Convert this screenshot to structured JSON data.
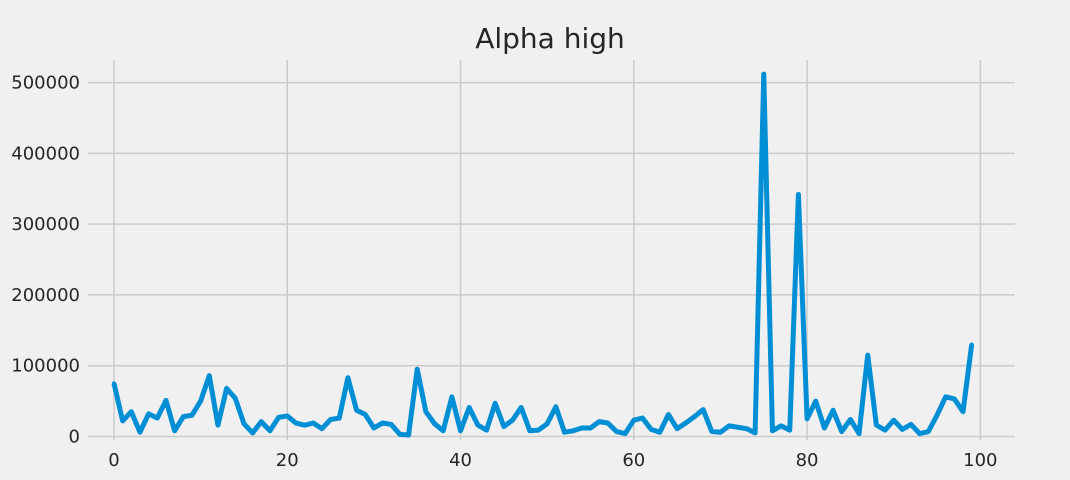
{
  "chart_data": {
    "type": "line",
    "title": "Alpha high",
    "xlabel": "",
    "ylabel": "",
    "xlim": [
      -3,
      104
    ],
    "ylim": [
      -5000,
      532000
    ],
    "grid": true,
    "x_ticks": [
      {
        "value": 0,
        "label": "0"
      },
      {
        "value": 20,
        "label": "20"
      },
      {
        "value": 40,
        "label": "40"
      },
      {
        "value": 60,
        "label": "60"
      },
      {
        "value": 80,
        "label": "80"
      },
      {
        "value": 100,
        "label": "100"
      }
    ],
    "y_ticks": [
      {
        "value": 0,
        "label": "0"
      },
      {
        "value": 100000,
        "label": "100000"
      },
      {
        "value": 200000,
        "label": "200000"
      },
      {
        "value": 300000,
        "label": "300000"
      },
      {
        "value": 400000,
        "label": "400000"
      },
      {
        "value": 500000,
        "label": "500000"
      }
    ],
    "series": [
      {
        "color": "#008fd5",
        "x": [
          0,
          1,
          2,
          3,
          4,
          5,
          6,
          7,
          8,
          9,
          10,
          11,
          12,
          13,
          14,
          15,
          16,
          17,
          18,
          19,
          20,
          21,
          22,
          23,
          24,
          25,
          26,
          27,
          28,
          29,
          30,
          31,
          32,
          33,
          34,
          35,
          36,
          37,
          38,
          39,
          40,
          41,
          42,
          43,
          44,
          45,
          46,
          47,
          48,
          49,
          50,
          51,
          52,
          53,
          54,
          55,
          56,
          57,
          58,
          59,
          60,
          61,
          62,
          63,
          64,
          65,
          66,
          67,
          68,
          69,
          70,
          71,
          72,
          73,
          74,
          75,
          76,
          77,
          78,
          79,
          80,
          81,
          82,
          83,
          84,
          85,
          86,
          87,
          88,
          89,
          90,
          91,
          92,
          93,
          94,
          95,
          96,
          97,
          98,
          99
        ],
        "y": [
          75000,
          22000,
          35000,
          6000,
          32000,
          26000,
          51000,
          8000,
          28000,
          30000,
          50000,
          86000,
          16000,
          68000,
          54000,
          18000,
          5000,
          21000,
          8000,
          27000,
          29000,
          19000,
          16000,
          19000,
          11000,
          24000,
          26000,
          83000,
          37000,
          31000,
          12000,
          19000,
          17000,
          3000,
          2000,
          95000,
          35000,
          18000,
          8000,
          56000,
          8000,
          41000,
          16000,
          9000,
          47000,
          14000,
          23000,
          41000,
          8000,
          9000,
          18000,
          42000,
          6000,
          8000,
          12000,
          12000,
          21000,
          19000,
          7000,
          4000,
          23000,
          26000,
          10000,
          6000,
          31000,
          11000,
          19000,
          28000,
          38000,
          7000,
          6000,
          15000,
          13000,
          11000,
          5000,
          512000,
          8000,
          15000,
          9000,
          342000,
          25000,
          50000,
          12000,
          37000,
          7000,
          24000,
          4000,
          115000,
          16000,
          9000,
          23000,
          10000,
          17000,
          4000,
          7000,
          30000,
          56000,
          53000,
          35000,
          130000
        ]
      }
    ]
  }
}
